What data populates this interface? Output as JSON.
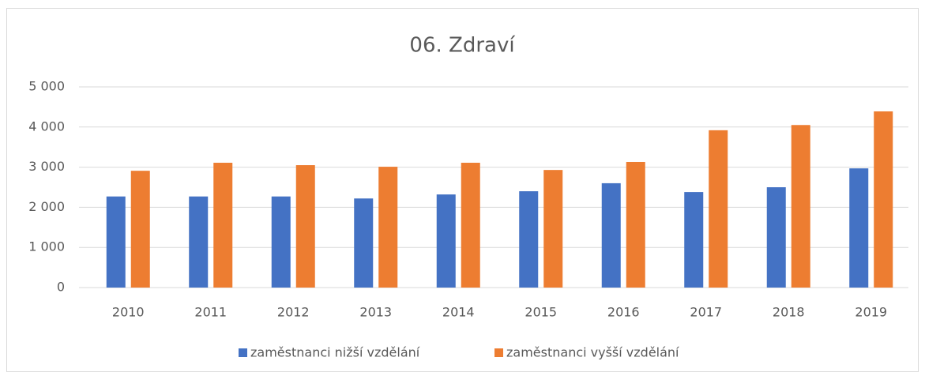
{
  "chart_data": {
    "type": "bar",
    "title": "06. Zdraví",
    "categories": [
      "2010",
      "2011",
      "2012",
      "2013",
      "2014",
      "2015",
      "2016",
      "2017",
      "2018",
      "2019"
    ],
    "series": [
      {
        "name": "zaměstnanci nižší vzdělání",
        "color": "#4472c4",
        "values": [
          2270,
          2270,
          2270,
          2220,
          2320,
          2400,
          2600,
          2380,
          2500,
          2970
        ]
      },
      {
        "name": "zaměstnanci vyšší vzdělání",
        "color": "#ed7d31",
        "values": [
          2910,
          3110,
          3050,
          3010,
          3110,
          2930,
          3130,
          3920,
          4050,
          4390
        ]
      }
    ],
    "ylim": [
      0,
      5000
    ],
    "yticks": [
      0,
      {
        "value": 1000,
        "label": "1 000"
      },
      {
        "value": 2000,
        "label": "2 000"
      },
      {
        "value": 3000,
        "label": "3 000"
      },
      {
        "value": 4000,
        "label": "4 000"
      },
      {
        "value": 5000,
        "label": "5 000"
      }
    ],
    "grid": true,
    "legend": "bottom"
  }
}
